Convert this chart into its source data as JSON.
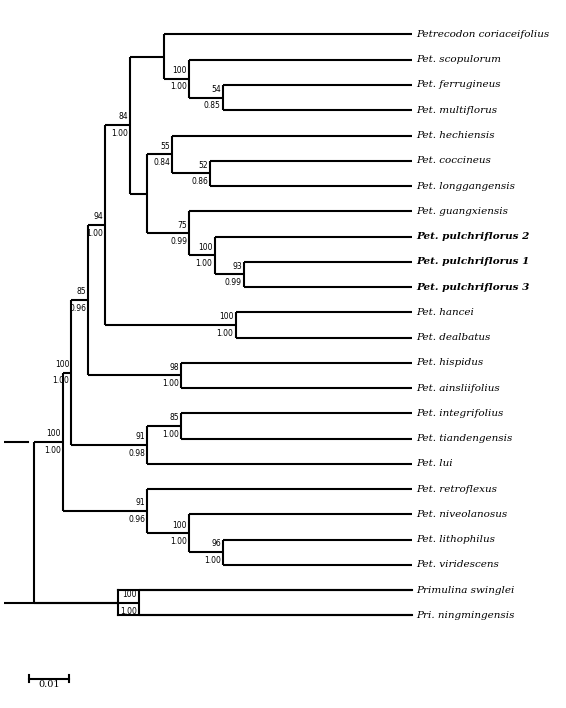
{
  "figsize": [
    5.66,
    7.08
  ],
  "dpi": 100,
  "bg_color": "#ffffff",
  "lw": 1.5,
  "taxa": [
    "Petrecodon coriaceifolius",
    "Pet. scopulorum",
    "Pet. ferrugineus",
    "Pet. multiflorus",
    "Pet. hechiensis",
    "Pet. coccineus",
    "Pet. longgangensis",
    "Pet. guangxiensis",
    "Pet. pulchriflorus 2",
    "Pet. pulchriflorus 1",
    "Pet. pulchriflorus 3",
    "Pet. hancei",
    "Pet. dealbatus",
    "Pet. hispidus",
    "Pet. ainsliifolius",
    "Pet. integrifolius",
    "Pet. tiandengensis",
    "Pet. lui",
    "Pet. retroflexus",
    "Pet. niveolanosus",
    "Pet. lithophilus",
    "Pet. viridescens",
    "Primulina swinglei",
    "Pri. ningmingensis"
  ],
  "bold_taxa_indices": [
    8,
    9,
    10
  ],
  "italic_taxa_indices": [
    0,
    1,
    2,
    3,
    4,
    5,
    6,
    7,
    8,
    9,
    10,
    11,
    12,
    13,
    14,
    15,
    16,
    17,
    18,
    19,
    20,
    21,
    22,
    23
  ],
  "scale_label": "0.01"
}
